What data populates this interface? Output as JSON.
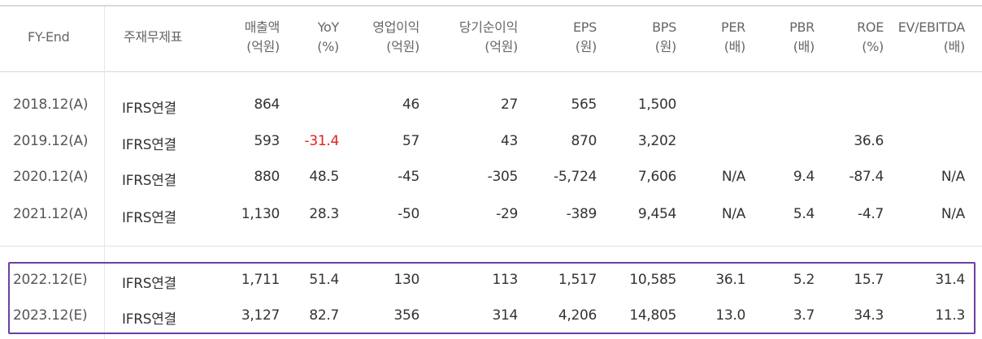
{
  "table": {
    "headers": [
      {
        "l1": "FY-End",
        "l2": ""
      },
      {
        "l1": "주재무제표",
        "l2": ""
      },
      {
        "l1": "매출액",
        "l2": "(억원)"
      },
      {
        "l1": "YoY",
        "l2": "(%)"
      },
      {
        "l1": "영업이익",
        "l2": "(억원)"
      },
      {
        "l1": "당기순이익",
        "l2": "(억원)"
      },
      {
        "l1": "EPS",
        "l2": "(원)"
      },
      {
        "l1": "BPS",
        "l2": "(원)"
      },
      {
        "l1": "PER",
        "l2": "(배)"
      },
      {
        "l1": "PBR",
        "l2": "(배)"
      },
      {
        "l1": "ROE",
        "l2": "(%)"
      },
      {
        "l1": "EV/EBITDA",
        "l2": "(배)"
      }
    ],
    "actual_rows": [
      [
        "2018.12(A)",
        "IFRS연결",
        "864",
        "",
        "46",
        "27",
        "565",
        "1,500",
        "",
        "",
        "",
        ""
      ],
      [
        "2019.12(A)",
        "IFRS연결",
        "593",
        "-31.4",
        "57",
        "43",
        "870",
        "3,202",
        "",
        "",
        "36.6",
        ""
      ],
      [
        "2020.12(A)",
        "IFRS연결",
        "880",
        "48.5",
        "-45",
        "-305",
        "-5,724",
        "7,606",
        "N/A",
        "9.4",
        "-87.4",
        "N/A"
      ],
      [
        "2021.12(A)",
        "IFRS연결",
        "1,130",
        "28.3",
        "-50",
        "-29",
        "-389",
        "9,454",
        "N/A",
        "5.4",
        "-4.7",
        "N/A"
      ]
    ],
    "estimate_rows": [
      [
        "2022.12(E)",
        "IFRS연결",
        "1,711",
        "51.4",
        "130",
        "113",
        "1,517",
        "10,585",
        "36.1",
        "5.2",
        "15.7",
        "31.4"
      ],
      [
        "2023.12(E)",
        "IFRS연결",
        "3,127",
        "82.7",
        "356",
        "314",
        "4,206",
        "14,805",
        "13.0",
        "3.7",
        "34.3",
        "11.3"
      ]
    ]
  },
  "colors": {
    "highlight_border": "#6b3fa6",
    "negative_yoy": "#e02020"
  }
}
